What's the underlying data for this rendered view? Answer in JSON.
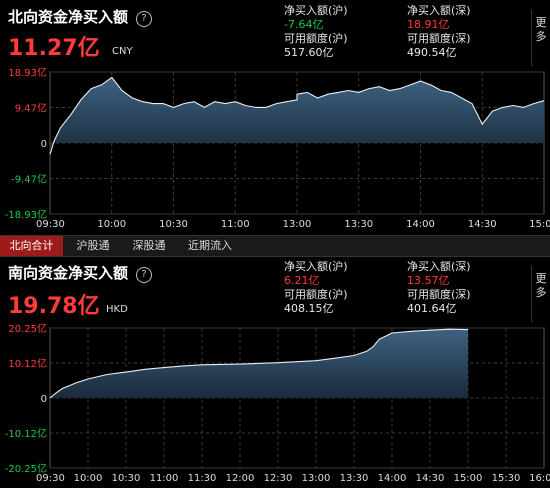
{
  "north": {
    "title": "北向资金净买入额",
    "value": "11.27亿",
    "unit": "CNY",
    "stats": [
      {
        "label": "净买入额(沪)",
        "value": "-7.64亿",
        "color": "#19c84a"
      },
      {
        "label": "净买入额(深)",
        "value": "18.91亿",
        "color": "#ff3b3b"
      },
      {
        "label": "可用额度(沪)",
        "value": "517.60亿",
        "color": "#e8e8e8"
      },
      {
        "label": "可用额度(深)",
        "value": "490.54亿",
        "color": "#e8e8e8"
      }
    ],
    "more_label": "更多"
  },
  "tabs": [
    {
      "label": "北向合计",
      "active": true
    },
    {
      "label": "沪股通",
      "active": false
    },
    {
      "label": "深股通",
      "active": false
    },
    {
      "label": "近期流入",
      "active": false
    }
  ],
  "south": {
    "title": "南向资金净买入额",
    "value": "19.78亿",
    "unit": "HKD",
    "stats": [
      {
        "label": "净买入额(沪)",
        "value": "6.21亿",
        "color": "#ff3b3b"
      },
      {
        "label": "净买入额(深)",
        "value": "13.57亿",
        "color": "#ff3b3b"
      },
      {
        "label": "可用额度(沪)",
        "value": "408.15亿",
        "color": "#e8e8e8"
      },
      {
        "label": "可用额度(深)",
        "value": "401.64亿",
        "color": "#e8e8e8"
      }
    ],
    "more_label": "更多"
  },
  "chart_data": [
    {
      "type": "area",
      "ylim": [
        -18.93,
        18.93
      ],
      "ytick_labels": [
        "18.93亿",
        "9.47亿",
        "0",
        "-9.47亿",
        "-18.93亿"
      ],
      "xtick_labels": [
        "09:30",
        "10:00",
        "10:30",
        "11:00",
        "13:00",
        "13:30",
        "14:00",
        "14:30",
        "15:00"
      ],
      "x": [
        "09:30",
        "09:32",
        "09:35",
        "09:40",
        "09:45",
        "09:50",
        "09:55",
        "10:00",
        "10:05",
        "10:10",
        "10:15",
        "10:20",
        "10:25",
        "10:30",
        "10:35",
        "10:40",
        "10:45",
        "10:50",
        "10:55",
        "11:00",
        "11:05",
        "11:10",
        "11:15",
        "11:20",
        "11:25",
        "11:30",
        "13:00",
        "13:05",
        "13:10",
        "13:15",
        "13:20",
        "13:25",
        "13:30",
        "13:35",
        "13:40",
        "13:45",
        "13:50",
        "13:55",
        "14:00",
        "14:05",
        "14:10",
        "14:15",
        "14:20",
        "14:25",
        "14:30",
        "14:35",
        "14:40",
        "14:45",
        "14:50",
        "14:55",
        "15:00"
      ],
      "values": [
        -3.0,
        0.5,
        4.0,
        7.5,
        11.5,
        14.5,
        15.5,
        17.5,
        14.0,
        12.0,
        11.0,
        10.5,
        10.5,
        9.5,
        10.5,
        11.0,
        9.5,
        11.0,
        10.5,
        11.0,
        10.0,
        9.5,
        9.5,
        10.5,
        11.0,
        11.5,
        13.0,
        13.5,
        12.0,
        13.0,
        13.5,
        14.0,
        13.5,
        14.5,
        15.0,
        14.0,
        14.5,
        15.5,
        16.5,
        15.5,
        14.0,
        13.5,
        12.0,
        10.5,
        5.0,
        8.5,
        9.5,
        10.0,
        9.5,
        10.5,
        11.27
      ]
    },
    {
      "type": "area",
      "ylim": [
        -20.25,
        20.25
      ],
      "ytick_labels": [
        "20.25亿",
        "10.12亿",
        "0",
        "-10.12亿",
        "-20.25亿"
      ],
      "xtick_labels": [
        "09:30",
        "10:00",
        "10:30",
        "11:00",
        "11:30",
        "12:00",
        "12:30",
        "13:00",
        "13:30",
        "14:00",
        "14:30",
        "15:00",
        "15:30",
        "16:00"
      ],
      "x": [
        "09:30",
        "09:35",
        "09:40",
        "09:45",
        "09:50",
        "10:00",
        "10:15",
        "10:30",
        "10:45",
        "11:00",
        "11:15",
        "11:30",
        "12:00",
        "12:30",
        "13:00",
        "13:15",
        "13:30",
        "13:40",
        "13:45",
        "13:50",
        "14:00",
        "14:15",
        "14:30",
        "14:45",
        "15:00"
      ],
      "values": [
        0,
        1.5,
        2.8,
        3.5,
        4.3,
        5.5,
        6.8,
        7.5,
        8.3,
        8.8,
        9.3,
        9.6,
        9.8,
        10.2,
        10.8,
        11.5,
        12.3,
        13.5,
        14.8,
        17.0,
        18.8,
        19.3,
        19.6,
        19.9,
        19.78
      ]
    }
  ]
}
